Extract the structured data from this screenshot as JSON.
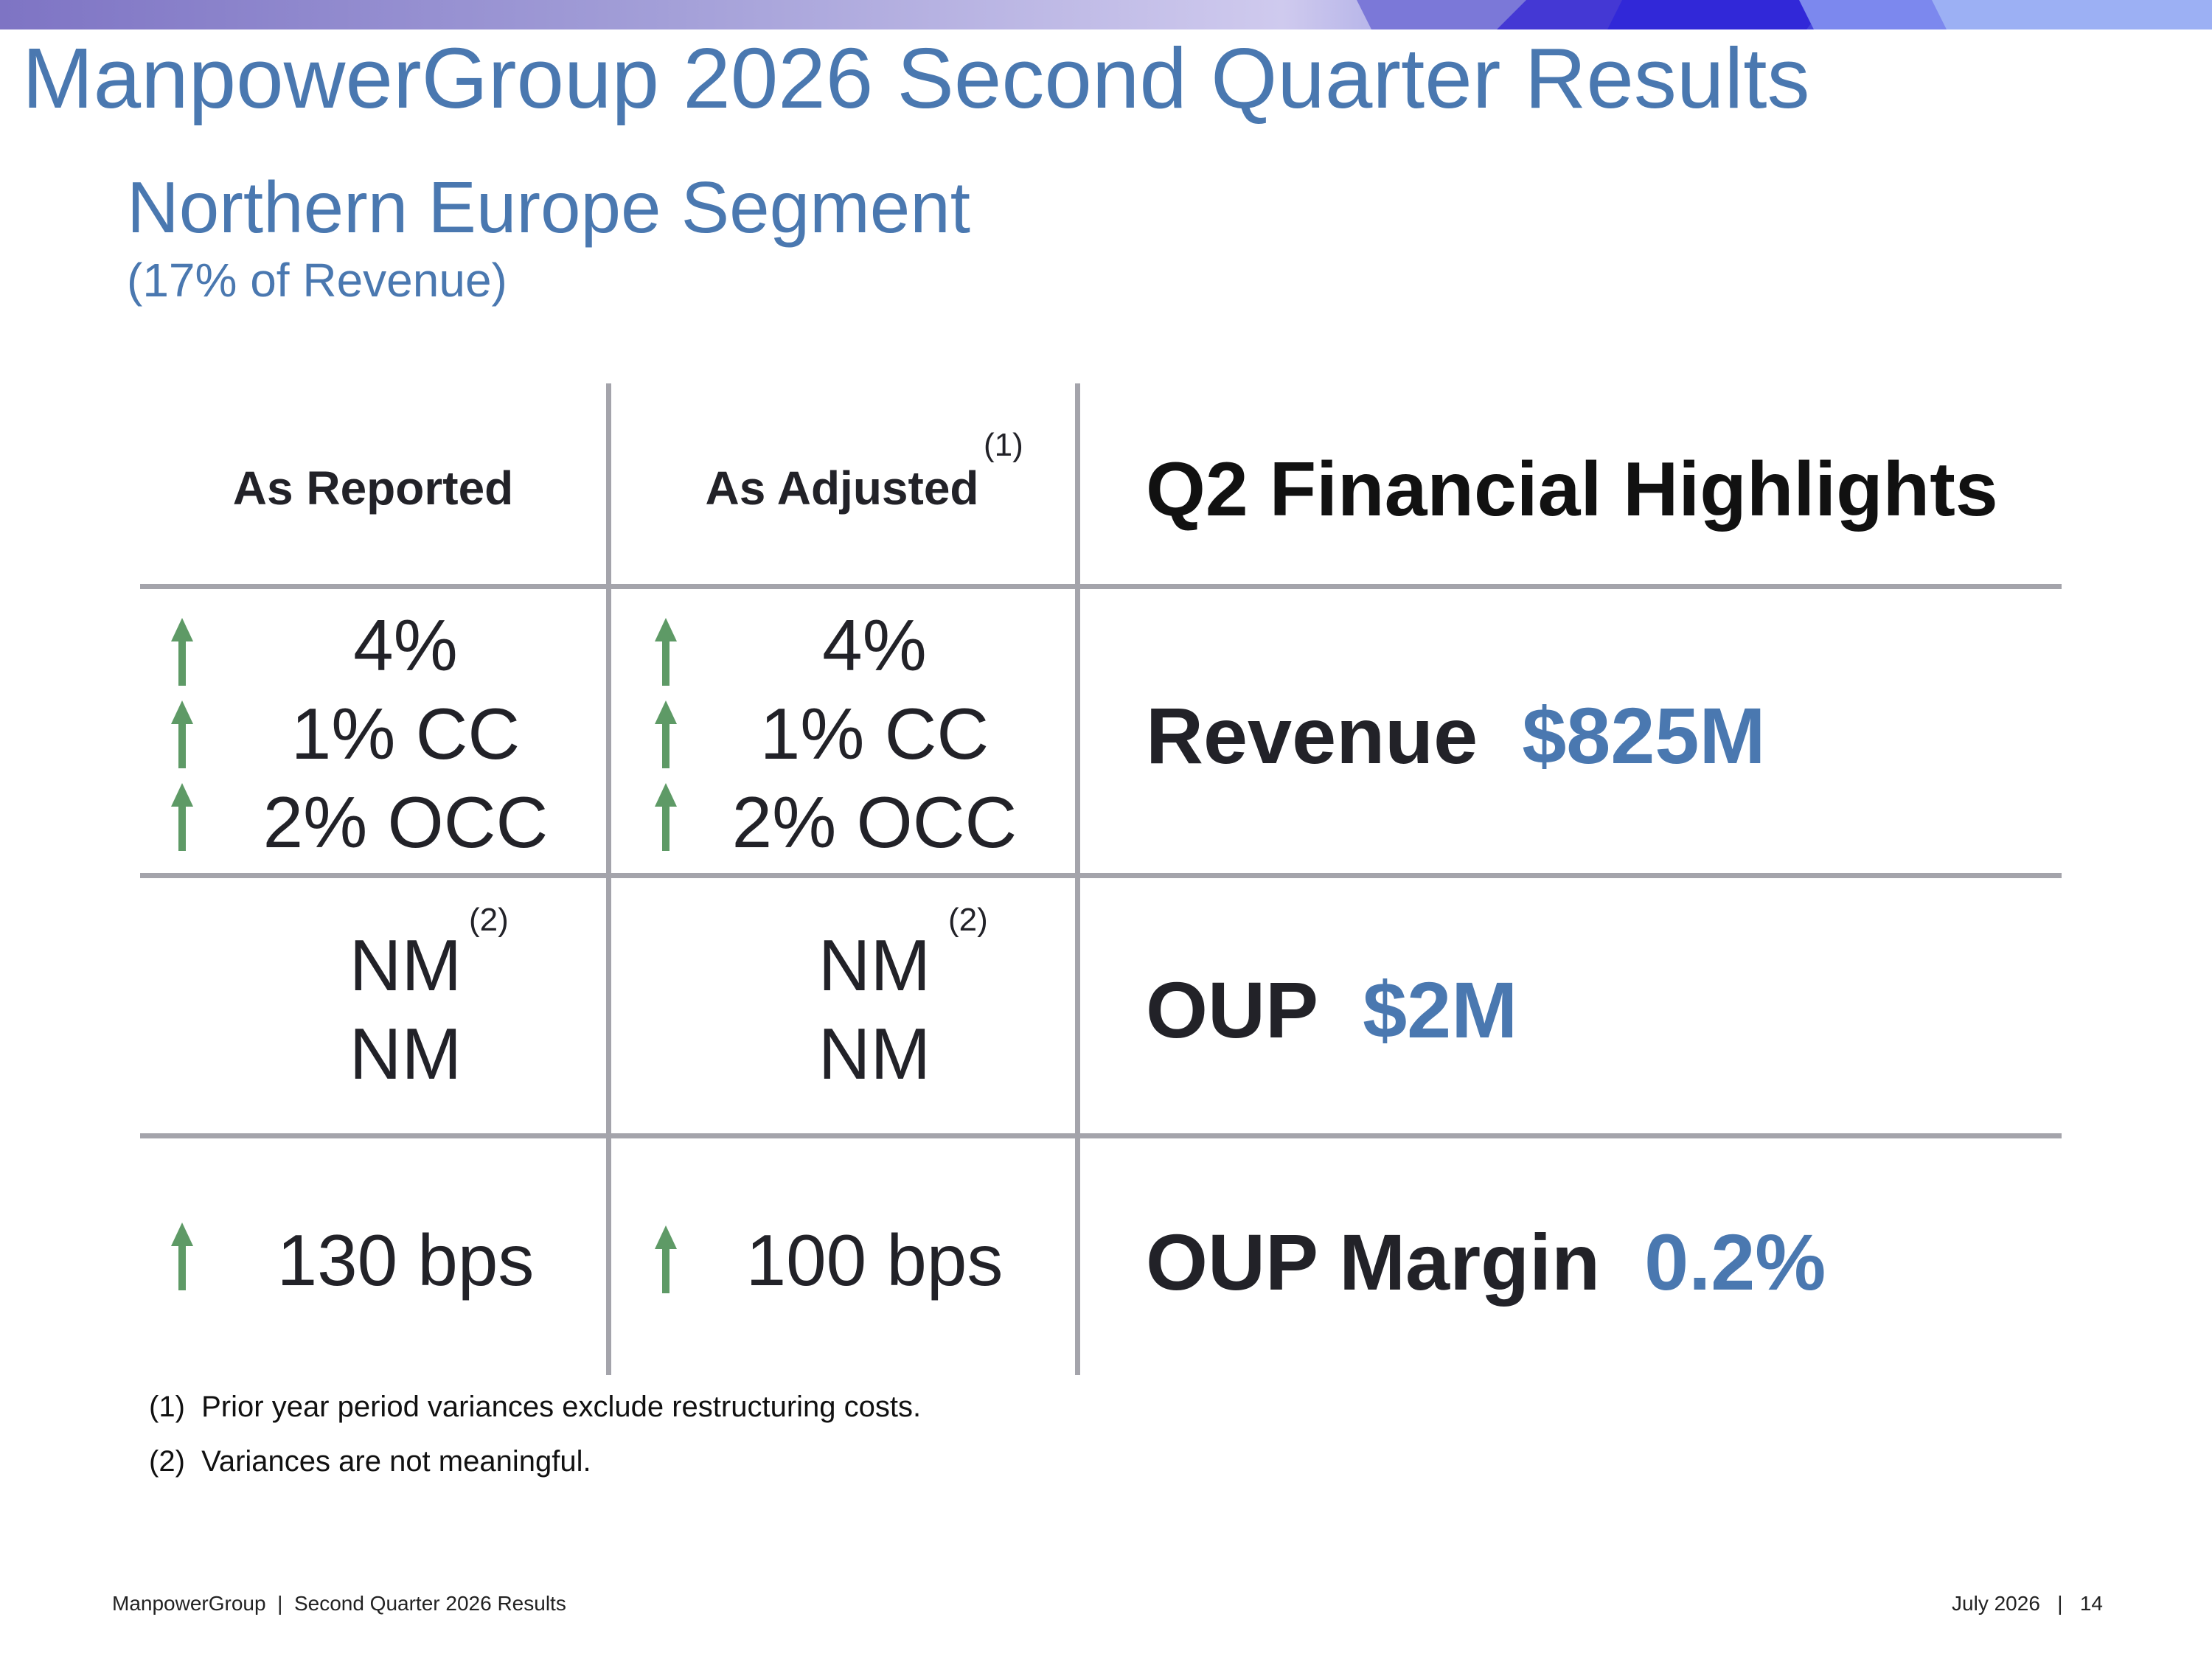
{
  "header": {
    "title": "ManpowerGroup 2026 Second Quarter Results",
    "segment_title": "Northern Europe Segment",
    "segment_subtitle": "(17% of Revenue)"
  },
  "table": {
    "col_reported": "As Reported",
    "col_adjusted": "As Adjusted",
    "col_adjusted_note": "(1)",
    "highlights_heading": "Q2 Financial Highlights",
    "revenue": {
      "reported": [
        "4%",
        "1% CC",
        "2% OCC"
      ],
      "adjusted": [
        "4%",
        "1% CC",
        "2% OCC"
      ],
      "label": "Revenue",
      "value": "$825M"
    },
    "oup": {
      "reported": [
        "NM",
        "NM"
      ],
      "adjusted": [
        "NM",
        "NM"
      ],
      "reported_note": "(2)",
      "adjusted_note": "(2)",
      "label": "OUP",
      "value": "$2M"
    },
    "oup_margin": {
      "reported": "130 bps",
      "adjusted": "100 bps",
      "label": "OUP Margin",
      "value": "0.2%"
    },
    "arrow_color": "#5e9a66",
    "accent_color": "#4a78b0"
  },
  "notes": [
    {
      "num": "(1)",
      "text": "Prior year period variances exclude restructuring costs."
    },
    {
      "num": "(2)",
      "text": "Variances are not meaningful."
    }
  ],
  "footer": {
    "left": "ManpowerGroup  |  Second Quarter 2026 Results",
    "right": "July 2026   |   14"
  }
}
